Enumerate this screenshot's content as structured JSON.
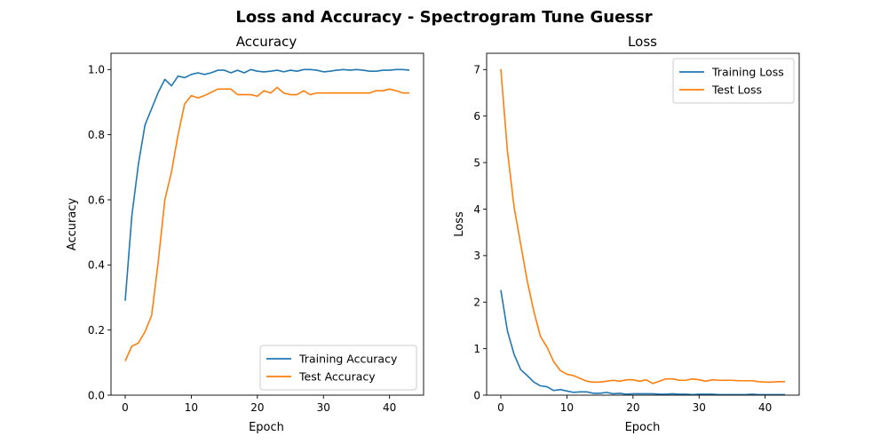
{
  "figure_title": "Loss and Accuracy - Spectrogram Tune Guessr",
  "colors": {
    "training": "#1f77b4",
    "test": "#ff7f0e",
    "frame": "#000000",
    "legend_border": "#cccccc"
  },
  "chart_data": [
    {
      "type": "line",
      "title": "Accuracy",
      "xlabel": "Epoch",
      "ylabel": "Accuracy",
      "xlim": [
        -2.15,
        45.15
      ],
      "ylim": [
        0,
        1.05
      ],
      "xticks": [
        0,
        10,
        20,
        30,
        40
      ],
      "yticks": [
        0.0,
        0.2,
        0.4,
        0.6,
        0.8,
        1.0
      ],
      "ytick_labels": [
        "0.0",
        "0.2",
        "0.4",
        "0.6",
        "0.8",
        "1.0"
      ],
      "legend": "lower right",
      "grid": false,
      "x": [
        0,
        1,
        2,
        3,
        4,
        5,
        6,
        7,
        8,
        9,
        10,
        11,
        12,
        13,
        14,
        15,
        16,
        17,
        18,
        19,
        20,
        21,
        22,
        23,
        24,
        25,
        26,
        27,
        28,
        29,
        30,
        31,
        32,
        33,
        34,
        35,
        36,
        37,
        38,
        39,
        40,
        41,
        42,
        43
      ],
      "series": [
        {
          "name": "Training Accuracy",
          "color": "#1f77b4",
          "values": [
            0.29,
            0.55,
            0.71,
            0.83,
            0.88,
            0.93,
            0.97,
            0.95,
            0.98,
            0.975,
            0.985,
            0.99,
            0.985,
            0.99,
            0.998,
            0.998,
            0.99,
            0.998,
            0.99,
            1.0,
            0.995,
            0.993,
            0.995,
            0.998,
            0.993,
            0.998,
            0.995,
            1.0,
            1.0,
            0.998,
            0.993,
            0.995,
            0.998,
            1.0,
            0.998,
            1.0,
            0.998,
            0.995,
            0.995,
            0.998,
            0.998,
            1.0,
            1.0,
            0.998
          ]
        },
        {
          "name": "Test Accuracy",
          "color": "#ff7f0e",
          "values": [
            0.105,
            0.15,
            0.16,
            0.195,
            0.245,
            0.41,
            0.6,
            0.685,
            0.8,
            0.895,
            0.92,
            0.913,
            0.92,
            0.93,
            0.94,
            0.94,
            0.94,
            0.923,
            0.923,
            0.923,
            0.918,
            0.935,
            0.928,
            0.945,
            0.928,
            0.923,
            0.923,
            0.935,
            0.923,
            0.928,
            0.928,
            0.928,
            0.928,
            0.928,
            0.928,
            0.928,
            0.928,
            0.928,
            0.935,
            0.935,
            0.94,
            0.935,
            0.928,
            0.928
          ]
        }
      ]
    },
    {
      "type": "line",
      "title": "Loss",
      "xlabel": "Epoch",
      "ylabel": "Loss",
      "xlim": [
        -2.15,
        45.15
      ],
      "ylim": [
        0,
        7.35
      ],
      "xticks": [
        0,
        10,
        20,
        30,
        40
      ],
      "yticks": [
        0,
        1,
        2,
        3,
        4,
        5,
        6,
        7
      ],
      "ytick_labels": [
        "0",
        "1",
        "2",
        "3",
        "4",
        "5",
        "6",
        "7"
      ],
      "legend": "upper right",
      "grid": false,
      "x": [
        0,
        1,
        2,
        3,
        4,
        5,
        6,
        7,
        8,
        9,
        10,
        11,
        12,
        13,
        14,
        15,
        16,
        17,
        18,
        19,
        20,
        21,
        22,
        23,
        24,
        25,
        26,
        27,
        28,
        29,
        30,
        31,
        32,
        33,
        34,
        35,
        36,
        37,
        38,
        39,
        40,
        41,
        42,
        43
      ],
      "series": [
        {
          "name": "Training Loss",
          "color": "#1f77b4",
          "values": [
            2.26,
            1.38,
            0.88,
            0.55,
            0.42,
            0.28,
            0.2,
            0.18,
            0.1,
            0.12,
            0.09,
            0.06,
            0.07,
            0.07,
            0.04,
            0.04,
            0.06,
            0.03,
            0.04,
            0.02,
            0.03,
            0.03,
            0.03,
            0.03,
            0.02,
            0.02,
            0.03,
            0.02,
            0.02,
            0.01,
            0.02,
            0.02,
            0.02,
            0.01,
            0.01,
            0.01,
            0.01,
            0.01,
            0.02,
            0.01,
            0.01,
            0.01,
            0.01,
            0.01
          ]
        },
        {
          "name": "Test Loss",
          "color": "#ff7f0e",
          "values": [
            7.01,
            5.25,
            4.05,
            3.25,
            2.45,
            1.8,
            1.26,
            1.03,
            0.72,
            0.53,
            0.45,
            0.42,
            0.36,
            0.3,
            0.28,
            0.28,
            0.3,
            0.32,
            0.3,
            0.33,
            0.33,
            0.3,
            0.33,
            0.25,
            0.3,
            0.35,
            0.35,
            0.32,
            0.32,
            0.35,
            0.33,
            0.3,
            0.33,
            0.32,
            0.32,
            0.32,
            0.31,
            0.31,
            0.31,
            0.29,
            0.28,
            0.28,
            0.29,
            0.29
          ]
        }
      ]
    }
  ]
}
